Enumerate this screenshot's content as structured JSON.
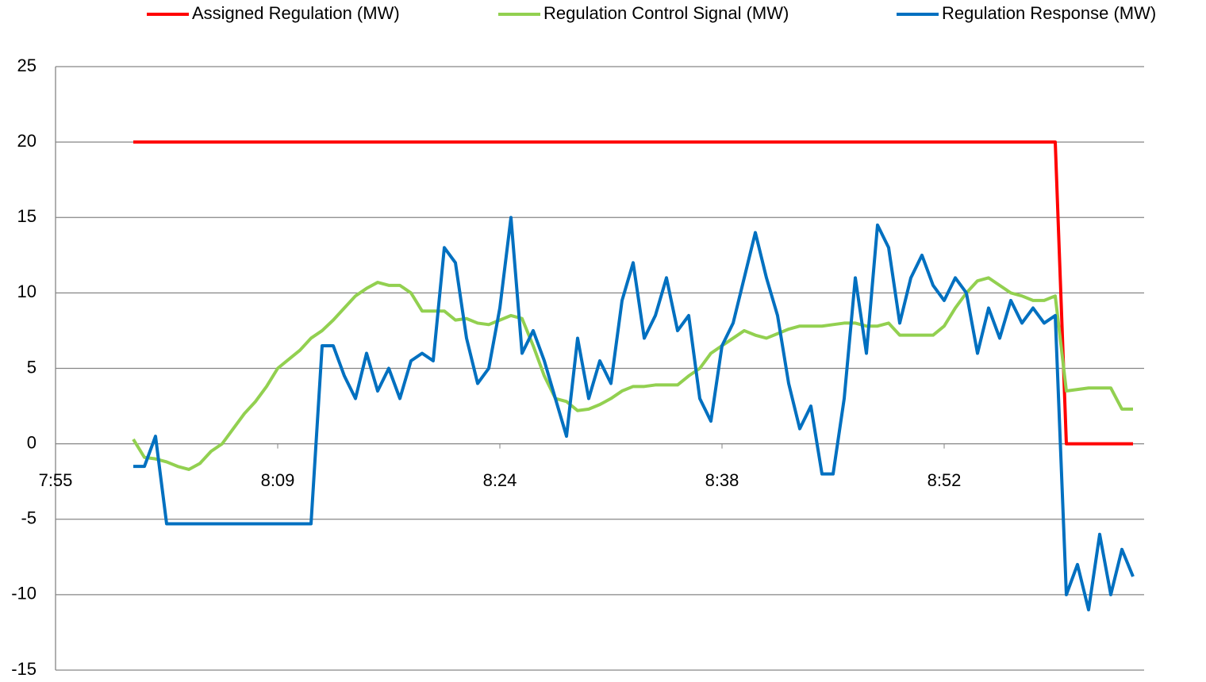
{
  "chart_data": {
    "type": "line",
    "categories": [
      "7:55",
      null,
      null,
      null,
      null,
      null,
      null,
      null,
      null,
      null,
      null,
      null,
      null,
      null,
      null,
      null,
      null,
      null,
      null,
      null,
      "8:09",
      null,
      null,
      null,
      null,
      null,
      null,
      null,
      null,
      null,
      null,
      null,
      null,
      null,
      null,
      null,
      null,
      null,
      null,
      null,
      "8:24",
      null,
      null,
      null,
      null,
      null,
      null,
      null,
      null,
      null,
      null,
      null,
      null,
      null,
      null,
      null,
      null,
      null,
      null,
      null,
      "8:38",
      null,
      null,
      null,
      null,
      null,
      null,
      null,
      null,
      null,
      null,
      null,
      null,
      null,
      null,
      null,
      null,
      null,
      null,
      null,
      "8:52",
      null,
      null,
      null,
      null,
      null,
      null,
      null,
      null,
      null,
      null,
      null,
      null,
      null,
      null,
      null,
      null,
      null
    ],
    "series": [
      {
        "name": "Assigned Regulation (MW)",
        "color": "#ff0000",
        "values": [
          null,
          null,
          null,
          null,
          null,
          null,
          null,
          20,
          20,
          20,
          20,
          20,
          20,
          20,
          20,
          20,
          20,
          20,
          20,
          20,
          20,
          20,
          20,
          20,
          20,
          20,
          20,
          20,
          20,
          20,
          20,
          20,
          20,
          20,
          20,
          20,
          20,
          20,
          20,
          20,
          20,
          20,
          20,
          20,
          20,
          20,
          20,
          20,
          20,
          20,
          20,
          20,
          20,
          20,
          20,
          20,
          20,
          20,
          20,
          20,
          20,
          20,
          20,
          20,
          20,
          20,
          20,
          20,
          20,
          20,
          20,
          20,
          20,
          20,
          20,
          20,
          20,
          20,
          20,
          20,
          20,
          20,
          20,
          20,
          20,
          20,
          20,
          20,
          20,
          20,
          20,
          0,
          0,
          0,
          0,
          0,
          0,
          0
        ]
      },
      {
        "name": "Regulation Control Signal (MW)",
        "color": "#92d050",
        "values": [
          null,
          null,
          null,
          null,
          null,
          null,
          null,
          0.3,
          -0.9,
          -1.0,
          -1.2,
          -1.5,
          -1.7,
          -1.3,
          -0.5,
          0,
          1.0,
          2.0,
          2.8,
          3.8,
          5.0,
          5.6,
          6.2,
          7.0,
          7.5,
          8.2,
          9.0,
          9.8,
          10.3,
          10.7,
          10.5,
          10.5,
          10.0,
          8.8,
          8.8,
          8.8,
          8.2,
          8.3,
          8.0,
          7.9,
          8.2,
          8.5,
          8.3,
          6.5,
          4.5,
          3.0,
          2.8,
          2.2,
          2.3,
          2.6,
          3.0,
          3.5,
          3.8,
          3.8,
          3.9,
          3.9,
          3.9,
          4.5,
          5.0,
          6.0,
          6.5,
          7.0,
          7.5,
          7.2,
          7.0,
          7.3,
          7.6,
          7.8,
          7.8,
          7.8,
          7.9,
          8.0,
          8.0,
          7.8,
          7.8,
          8.0,
          7.2,
          7.2,
          7.2,
          7.2,
          7.8,
          9.0,
          10.0,
          10.8,
          11.0,
          10.5,
          10.0,
          9.8,
          9.5,
          9.5,
          9.8,
          3.5,
          3.6,
          3.7,
          3.7,
          3.7,
          2.3,
          2.3
        ]
      },
      {
        "name": "Regulation Response (MW)",
        "color": "#0070c0",
        "values": [
          null,
          null,
          null,
          null,
          null,
          null,
          null,
          -1.5,
          -1.5,
          0.5,
          -5.3,
          -5.3,
          -5.3,
          -5.3,
          -5.3,
          -5.3,
          -5.3,
          -5.3,
          -5.3,
          -5.3,
          -5.3,
          -5.3,
          -5.3,
          -5.3,
          6.5,
          6.5,
          4.5,
          3.0,
          6.0,
          3.5,
          5.0,
          3.0,
          5.5,
          6.0,
          5.5,
          13.0,
          12.0,
          7.0,
          4.0,
          5.0,
          9.0,
          15.0,
          6.0,
          7.5,
          5.5,
          3.0,
          0.5,
          7.0,
          3.0,
          5.5,
          4.0,
          9.5,
          12.0,
          7.0,
          8.5,
          11.0,
          7.5,
          8.5,
          3.0,
          1.5,
          6.5,
          8.0,
          11.0,
          14.0,
          11.0,
          8.5,
          4.0,
          1.0,
          2.5,
          -2.0,
          -2.0,
          3.0,
          11.0,
          6.0,
          14.5,
          13.0,
          8.0,
          11.0,
          12.5,
          10.5,
          9.5,
          11.0,
          10.0,
          6.0,
          9.0,
          7.0,
          9.5,
          8.0,
          9.0,
          8.0,
          8.5,
          -10.0,
          -8.0,
          -11.0,
          -6.0,
          -10.0,
          -7.0,
          -8.8
        ]
      }
    ],
    "ylim": [
      -15,
      25
    ],
    "yticks": [
      -15,
      -10,
      -5,
      0,
      5,
      10,
      15,
      20,
      25
    ],
    "grid": true,
    "legend": "top"
  }
}
